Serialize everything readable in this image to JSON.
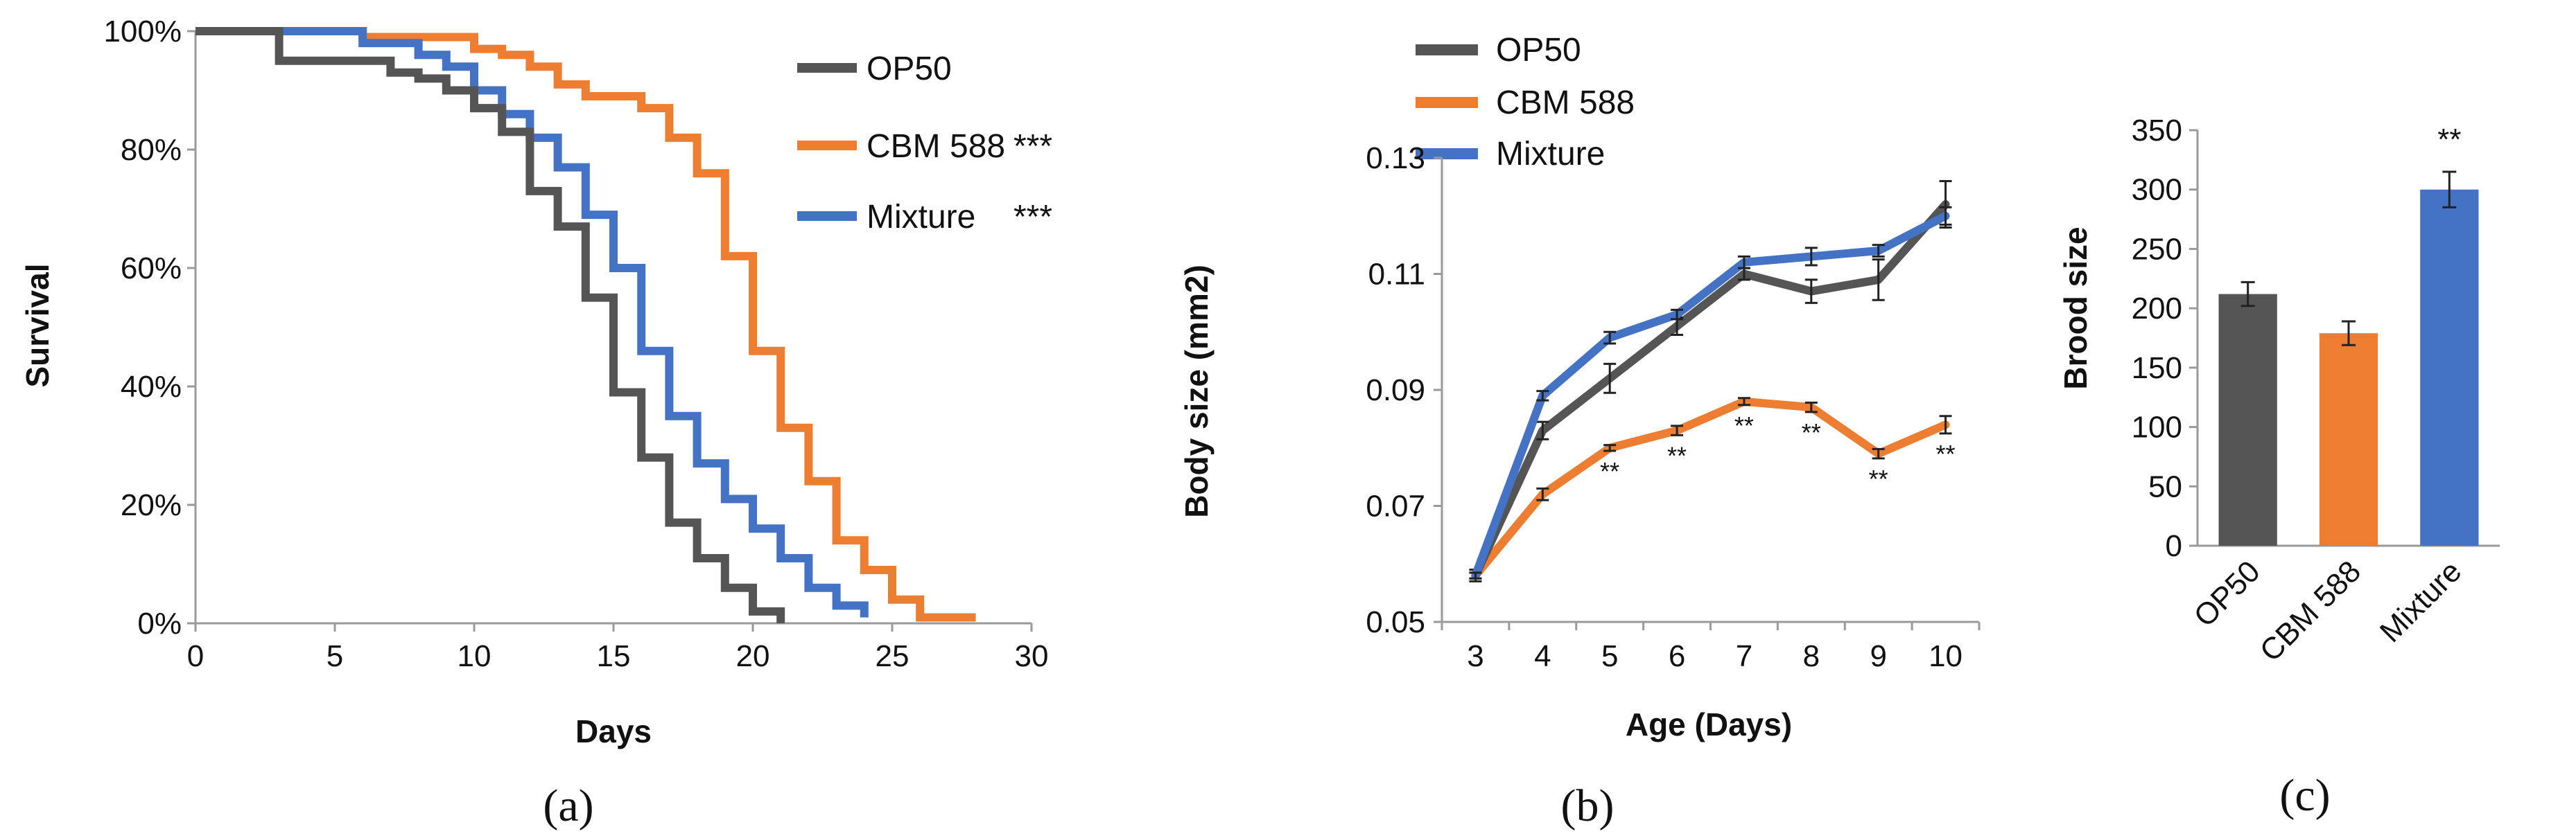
{
  "colors": {
    "op50": "#555555",
    "cbm": "#ED7D31",
    "mix": "#4472C4"
  },
  "chart_data": [
    {
      "type": "line",
      "panel": "a",
      "ylabel": "Survival",
      "xlabel": "Days",
      "xlim": [
        0,
        30
      ],
      "ylim": [
        0,
        100
      ],
      "xticks": [
        "0",
        "5",
        "10",
        "15",
        "20",
        "25",
        "30"
      ],
      "yticks": [
        "0%",
        "20%",
        "40%",
        "60%",
        "80%",
        "100%"
      ],
      "series": [
        {
          "name": "OP50",
          "sig": "",
          "color": "#555555",
          "steps": [
            [
              0,
              100
            ],
            [
              3,
              100
            ],
            [
              3,
              95
            ],
            [
              7,
              95
            ],
            [
              7,
              93
            ],
            [
              8,
              93
            ],
            [
              8,
              92
            ],
            [
              9,
              92
            ],
            [
              9,
              90
            ],
            [
              10,
              90
            ],
            [
              10,
              87
            ],
            [
              11,
              87
            ],
            [
              11,
              83
            ],
            [
              12,
              83
            ],
            [
              12,
              73
            ],
            [
              13,
              73
            ],
            [
              13,
              67
            ],
            [
              14,
              67
            ],
            [
              14,
              55
            ],
            [
              15,
              55
            ],
            [
              15,
              39
            ],
            [
              16,
              39
            ],
            [
              16,
              28
            ],
            [
              17,
              28
            ],
            [
              17,
              17
            ],
            [
              18,
              17
            ],
            [
              18,
              11
            ],
            [
              19,
              11
            ],
            [
              19,
              6
            ],
            [
              20,
              6
            ],
            [
              20,
              2
            ],
            [
              21,
              2
            ],
            [
              21,
              0
            ]
          ]
        },
        {
          "name": "CBM 588",
          "sig": "***",
          "color": "#ED7D31",
          "steps": [
            [
              0,
              100
            ],
            [
              6,
              100
            ],
            [
              6,
              99
            ],
            [
              10,
              99
            ],
            [
              10,
              97
            ],
            [
              11,
              97
            ],
            [
              11,
              96
            ],
            [
              12,
              96
            ],
            [
              12,
              94
            ],
            [
              13,
              94
            ],
            [
              13,
              91
            ],
            [
              14,
              91
            ],
            [
              14,
              89
            ],
            [
              15,
              89
            ],
            [
              15,
              89
            ],
            [
              16,
              89
            ],
            [
              16,
              87
            ],
            [
              17,
              87
            ],
            [
              17,
              82
            ],
            [
              18,
              82
            ],
            [
              18,
              76
            ],
            [
              19,
              76
            ],
            [
              19,
              62
            ],
            [
              20,
              62
            ],
            [
              20,
              46
            ],
            [
              21,
              46
            ],
            [
              21,
              33
            ],
            [
              22,
              33
            ],
            [
              22,
              24
            ],
            [
              23,
              24
            ],
            [
              23,
              14
            ],
            [
              24,
              14
            ],
            [
              24,
              9
            ],
            [
              25,
              9
            ],
            [
              25,
              4
            ],
            [
              26,
              4
            ],
            [
              26,
              1
            ],
            [
              28,
              1
            ]
          ]
        },
        {
          "name": "Mixture",
          "sig": "***",
          "color": "#4472C4",
          "steps": [
            [
              0,
              100
            ],
            [
              6,
              100
            ],
            [
              6,
              98
            ],
            [
              8,
              98
            ],
            [
              8,
              96
            ],
            [
              9,
              96
            ],
            [
              9,
              94
            ],
            [
              10,
              94
            ],
            [
              10,
              90
            ],
            [
              11,
              90
            ],
            [
              11,
              86
            ],
            [
              12,
              86
            ],
            [
              12,
              82
            ],
            [
              13,
              82
            ],
            [
              13,
              77
            ],
            [
              14,
              77
            ],
            [
              14,
              69
            ],
            [
              15,
              69
            ],
            [
              15,
              60
            ],
            [
              16,
              60
            ],
            [
              16,
              46
            ],
            [
              17,
              46
            ],
            [
              17,
              35
            ],
            [
              18,
              35
            ],
            [
              18,
              27
            ],
            [
              19,
              27
            ],
            [
              19,
              21
            ],
            [
              20,
              21
            ],
            [
              20,
              16
            ],
            [
              21,
              16
            ],
            [
              21,
              11
            ],
            [
              22,
              11
            ],
            [
              22,
              6
            ],
            [
              23,
              6
            ],
            [
              23,
              3
            ],
            [
              24,
              3
            ],
            [
              24,
              1
            ]
          ]
        }
      ]
    },
    {
      "type": "line",
      "panel": "b",
      "ylabel": "Body size    (mm2)",
      "xlabel": "Age (Days)",
      "ylim": [
        0.05,
        0.13
      ],
      "categories": [
        "3",
        "4",
        "5",
        "6",
        "7",
        "8",
        "9",
        "10"
      ],
      "yticks": [
        "0.05",
        "0.07",
        "0.09",
        "0.11",
        "0.13"
      ],
      "series": [
        {
          "name": "OP50",
          "color": "#555555",
          "values": [
            0.058,
            0.083,
            0.092,
            0.101,
            0.11,
            0.107,
            0.109,
            0.122
          ],
          "errors": [
            0.001,
            0.0015,
            0.0025,
            0.0015,
            0.001,
            0.002,
            0.0035,
            0.004
          ]
        },
        {
          "name": "CBM 588",
          "color": "#ED7D31",
          "values": [
            0.058,
            0.072,
            0.08,
            0.083,
            0.088,
            0.087,
            0.079,
            0.084
          ],
          "errors": [
            0.0005,
            0.001,
            0.0005,
            0.0008,
            0.0006,
            0.0008,
            0.0008,
            0.0015
          ]
        },
        {
          "name": "Mixture",
          "color": "#4472C4",
          "values": [
            0.058,
            0.089,
            0.099,
            0.103,
            0.112,
            0.113,
            0.114,
            0.12
          ],
          "errors": [
            0.0005,
            0.0008,
            0.001,
            0.0008,
            0.001,
            0.0015,
            0.001,
            0.0015
          ]
        }
      ],
      "annotations": [
        "**",
        "**",
        "**",
        "**",
        "**",
        "**"
      ],
      "annotation_days": [
        5,
        6,
        7,
        8,
        9,
        10
      ]
    },
    {
      "type": "bar",
      "panel": "c",
      "ylabel": "Brood size",
      "ylim": [
        0,
        350
      ],
      "yticks": [
        "0",
        "50",
        "100",
        "150",
        "200",
        "250",
        "300",
        "350"
      ],
      "categories": [
        "OP50",
        "CBM 588",
        "Mixture"
      ],
      "values": [
        212,
        179,
        300
      ],
      "errors": [
        10,
        10,
        15
      ],
      "colors": [
        "#555555",
        "#ED7D31",
        "#4472C4"
      ],
      "annotations": [
        "",
        "",
        "**"
      ]
    }
  ],
  "panel_labels": {
    "a": "(a)",
    "b": "(b)",
    "c": "(c)"
  }
}
